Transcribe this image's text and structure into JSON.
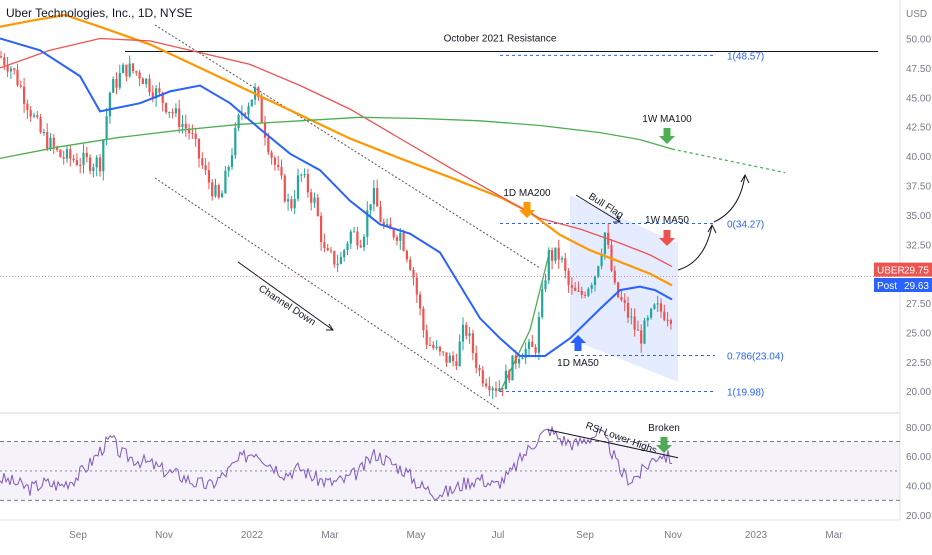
{
  "header": {
    "title": "Uber Technologies, Inc., 1D, NYSE"
  },
  "chart_data": {
    "type": "line",
    "price_axis": {
      "unit_label": "USD",
      "ticks": [
        "50.00",
        "47.50",
        "45.00",
        "42.50",
        "40.00",
        "37.50",
        "35.00",
        "32.50",
        "27.50",
        "25.00",
        "22.50",
        "20.00"
      ],
      "range": [
        19.0,
        52.0
      ]
    },
    "rsi_axis": {
      "ticks": [
        "80.00",
        "60.00",
        "40.00",
        "20.00"
      ],
      "range": [
        18,
        86
      ],
      "upper_band": 70,
      "lower_band": 30,
      "mid": 50
    },
    "time_axis": {
      "labels": [
        "Sep",
        "Nov",
        "2022",
        "Mar",
        "May",
        "Jul",
        "Sep",
        "Nov",
        "2023",
        "Mar"
      ],
      "label_positions_t": [
        78,
        164,
        252,
        330,
        416,
        498,
        585,
        673,
        756,
        834
      ]
    },
    "price_tags": [
      {
        "label": "UBER",
        "value": "29.75",
        "price": 29.75,
        "color": "#ef5350"
      },
      {
        "label": "Post",
        "value": "29.63",
        "price": 29.63,
        "color": "#2962ff"
      }
    ],
    "levels": {
      "resistance": {
        "label": "October 2021 Resistance",
        "price": 48.9
      },
      "fib": [
        {
          "label": "1(48.57)",
          "price": 48.57
        },
        {
          "label": "0(34.27)",
          "price": 34.27
        },
        {
          "label": "0.786(23.04)",
          "price": 23.04
        },
        {
          "label": "1(19.98)",
          "price": 19.98
        }
      ]
    },
    "annotations": {
      "channel_down": "Channel Down",
      "bull_flag": "Bull Flag",
      "ma200_1d": "1D MA200",
      "ma50_1d": "1D MA50",
      "ma50_1w": "1W MA50",
      "ma100_1w": "1W MA100",
      "rsi_lower_highs": "RSI Lower Highs",
      "broken": "Broken"
    },
    "series": [
      {
        "key": "ma200_1d",
        "color": "#ff9800",
        "points": [
          [
            0,
            51.0
          ],
          [
            30,
            51.5
          ],
          [
            65,
            52.0
          ],
          [
            100,
            51.0
          ],
          [
            150,
            49.5
          ],
          [
            200,
            47.5
          ],
          [
            250,
            45.5
          ],
          [
            300,
            43.5
          ],
          [
            350,
            41.5
          ],
          [
            400,
            39.8
          ],
          [
            450,
            38.2
          ],
          [
            500,
            36.5
          ],
          [
            530,
            35.2
          ],
          [
            560,
            33.3
          ],
          [
            590,
            32.0
          ],
          [
            620,
            31.0
          ],
          [
            650,
            30.0
          ],
          [
            672,
            29.0
          ]
        ]
      },
      {
        "key": "ma200_red",
        "color": "#ef5350",
        "points": [
          [
            0,
            47.5
          ],
          [
            50,
            49.0
          ],
          [
            100,
            50.0
          ],
          [
            150,
            49.8
          ],
          [
            200,
            48.8
          ],
          [
            250,
            47.8
          ],
          [
            300,
            46.0
          ],
          [
            350,
            44.0
          ],
          [
            400,
            41.5
          ],
          [
            450,
            39.0
          ],
          [
            500,
            36.6
          ],
          [
            540,
            34.7
          ],
          [
            580,
            33.8
          ],
          [
            620,
            32.6
          ],
          [
            650,
            31.6
          ],
          [
            672,
            30.6
          ]
        ]
      },
      {
        "key": "ma100_1w",
        "color": "#4caf50",
        "points": [
          [
            0,
            39.8
          ],
          [
            60,
            40.8
          ],
          [
            120,
            41.6
          ],
          [
            180,
            42.2
          ],
          [
            240,
            42.7
          ],
          [
            300,
            43.0
          ],
          [
            360,
            43.3
          ],
          [
            420,
            43.2
          ],
          [
            480,
            43.0
          ],
          [
            540,
            42.6
          ],
          [
            600,
            42.0
          ],
          [
            640,
            41.4
          ],
          [
            672,
            40.6
          ]
        ]
      },
      {
        "key": "ma100_1w_projection",
        "color": "#4caf50",
        "style": "dotted",
        "points": [
          [
            672,
            40.6
          ],
          [
            785,
            38.6
          ]
        ]
      },
      {
        "key": "ma50_1d",
        "color": "#2962ff",
        "points": [
          [
            0,
            50.0
          ],
          [
            40,
            49.0
          ],
          [
            80,
            46.8
          ],
          [
            100,
            43.8
          ],
          [
            140,
            44.5
          ],
          [
            170,
            45.5
          ],
          [
            200,
            46.0
          ],
          [
            230,
            44.5
          ],
          [
            260,
            42.3
          ],
          [
            290,
            40.2
          ],
          [
            320,
            38.8
          ],
          [
            350,
            36.2
          ],
          [
            380,
            34.2
          ],
          [
            410,
            33.4
          ],
          [
            440,
            31.8
          ],
          [
            460,
            29.0
          ],
          [
            480,
            26.2
          ],
          [
            500,
            24.5
          ],
          [
            520,
            23.0
          ],
          [
            545,
            23.0
          ],
          [
            570,
            24.5
          ],
          [
            600,
            27.0
          ],
          [
            620,
            28.6
          ],
          [
            640,
            28.9
          ],
          [
            655,
            28.6
          ],
          [
            672,
            27.8
          ]
        ]
      }
    ],
    "candles_path": [
      [
        0,
        48.5
      ],
      [
        12,
        47.5
      ],
      [
        25,
        45.0
      ],
      [
        40,
        42.0
      ],
      [
        60,
        40.0
      ],
      [
        85,
        39.5
      ],
      [
        100,
        39.5
      ],
      [
        110,
        45.5
      ],
      [
        125,
        47.5
      ],
      [
        140,
        47.0
      ],
      [
        160,
        45.0
      ],
      [
        175,
        43.5
      ],
      [
        190,
        42.0
      ],
      [
        205,
        38.5
      ],
      [
        220,
        36.0
      ],
      [
        240,
        43.5
      ],
      [
        255,
        45.5
      ],
      [
        270,
        40.5
      ],
      [
        290,
        35.5
      ],
      [
        300,
        38.5
      ],
      [
        315,
        36.0
      ],
      [
        325,
        31.5
      ],
      [
        340,
        31.0
      ],
      [
        350,
        33.5
      ],
      [
        362,
        33.0
      ],
      [
        372,
        37.0
      ],
      [
        385,
        33.5
      ],
      [
        400,
        33.5
      ],
      [
        412,
        30.5
      ],
      [
        425,
        24.5
      ],
      [
        440,
        23.0
      ],
      [
        455,
        22.5
      ],
      [
        465,
        25.5
      ],
      [
        480,
        21.5
      ],
      [
        498,
        20.3
      ],
      [
        505,
        21.0
      ],
      [
        520,
        23.5
      ],
      [
        535,
        23.5
      ],
      [
        548,
        31.5
      ],
      [
        560,
        31.5
      ],
      [
        570,
        28.5
      ],
      [
        580,
        28.0
      ],
      [
        595,
        30.0
      ],
      [
        605,
        33.5
      ],
      [
        615,
        28.5
      ],
      [
        625,
        27.0
      ],
      [
        640,
        24.5
      ],
      [
        655,
        27.0
      ],
      [
        672,
        26.5
      ]
    ],
    "rsi_path": [
      [
        0,
        45
      ],
      [
        15,
        42
      ],
      [
        30,
        38
      ],
      [
        45,
        42
      ],
      [
        60,
        40
      ],
      [
        75,
        45
      ],
      [
        90,
        55
      ],
      [
        105,
        68
      ],
      [
        112,
        72
      ],
      [
        120,
        62
      ],
      [
        135,
        58
      ],
      [
        150,
        55
      ],
      [
        165,
        50
      ],
      [
        180,
        47
      ],
      [
        195,
        42
      ],
      [
        210,
        40
      ],
      [
        225,
        48
      ],
      [
        240,
        58
      ],
      [
        255,
        64
      ],
      [
        270,
        55
      ],
      [
        285,
        48
      ],
      [
        300,
        52
      ],
      [
        315,
        45
      ],
      [
        330,
        42
      ],
      [
        345,
        44
      ],
      [
        360,
        50
      ],
      [
        375,
        62
      ],
      [
        390,
        56
      ],
      [
        405,
        50
      ],
      [
        420,
        40
      ],
      [
        435,
        35
      ],
      [
        450,
        36
      ],
      [
        465,
        42
      ],
      [
        480,
        45
      ],
      [
        495,
        40
      ],
      [
        510,
        48
      ],
      [
        525,
        62
      ],
      [
        540,
        74
      ],
      [
        550,
        78
      ],
      [
        560,
        72
      ],
      [
        575,
        68
      ],
      [
        590,
        73
      ],
      [
        600,
        76
      ],
      [
        610,
        66
      ],
      [
        620,
        50
      ],
      [
        630,
        44
      ],
      [
        640,
        48
      ],
      [
        650,
        56
      ],
      [
        660,
        62
      ],
      [
        672,
        58
      ]
    ]
  }
}
